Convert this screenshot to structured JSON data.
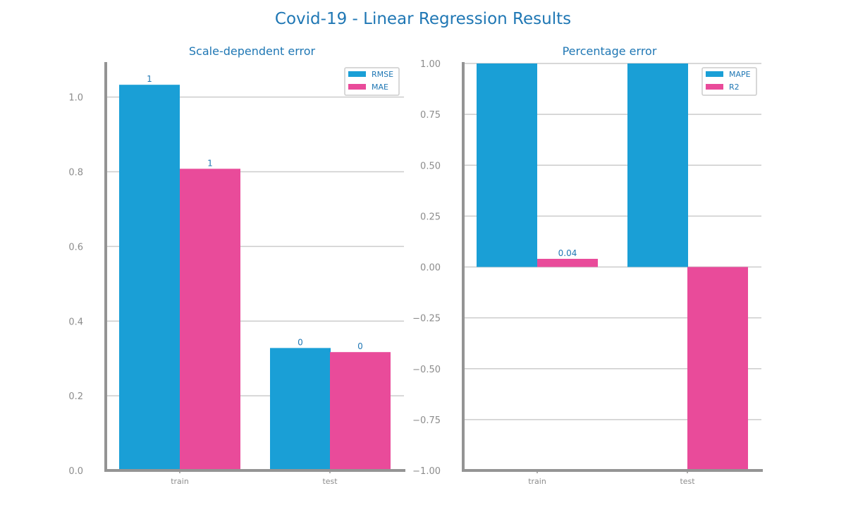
{
  "figure": {
    "title": "Covid-19 - Linear Regression Results"
  },
  "colors": {
    "series_1": "#1a9fd6",
    "series_2": "#e94b9a",
    "text": "#1f77b4",
    "tick": "#8c8c8c"
  },
  "chart_data": [
    {
      "type": "bar",
      "title": "Scale-dependent error",
      "categories": [
        "train",
        "test"
      ],
      "series": [
        {
          "name": "RMSE",
          "values": [
            1.033,
            0.328
          ],
          "labels": [
            "1",
            "0"
          ]
        },
        {
          "name": "MAE",
          "values": [
            0.808,
            0.317
          ],
          "labels": [
            "1",
            "0"
          ]
        }
      ],
      "ylim": [
        0,
        1.09
      ],
      "yticks": [
        0.0,
        0.2,
        0.4,
        0.6,
        0.8,
        1.0
      ],
      "ytick_labels": [
        "0.0",
        "0.2",
        "0.4",
        "0.6",
        "0.8",
        "1.0"
      ],
      "grid": true,
      "legend": "top-right"
    },
    {
      "type": "bar",
      "title": "Percentage error",
      "categories": [
        "train",
        "test"
      ],
      "series": [
        {
          "name": "MAPE",
          "values": [
            1.0,
            1.0
          ],
          "labels": [
            "",
            ""
          ]
        },
        {
          "name": "R2",
          "values": [
            0.04,
            -1.0
          ],
          "labels": [
            "0.04",
            ""
          ]
        }
      ],
      "ylim": [
        -1.0,
        1.0
      ],
      "yticks": [
        -1.0,
        -0.75,
        -0.5,
        -0.25,
        0.0,
        0.25,
        0.5,
        0.75,
        1.0
      ],
      "ytick_labels": [
        "−1.00",
        "−0.75",
        "−0.50",
        "−0.25",
        "0.00",
        "0.25",
        "0.50",
        "0.75",
        "1.00"
      ],
      "grid": true,
      "legend": "top-right"
    }
  ]
}
